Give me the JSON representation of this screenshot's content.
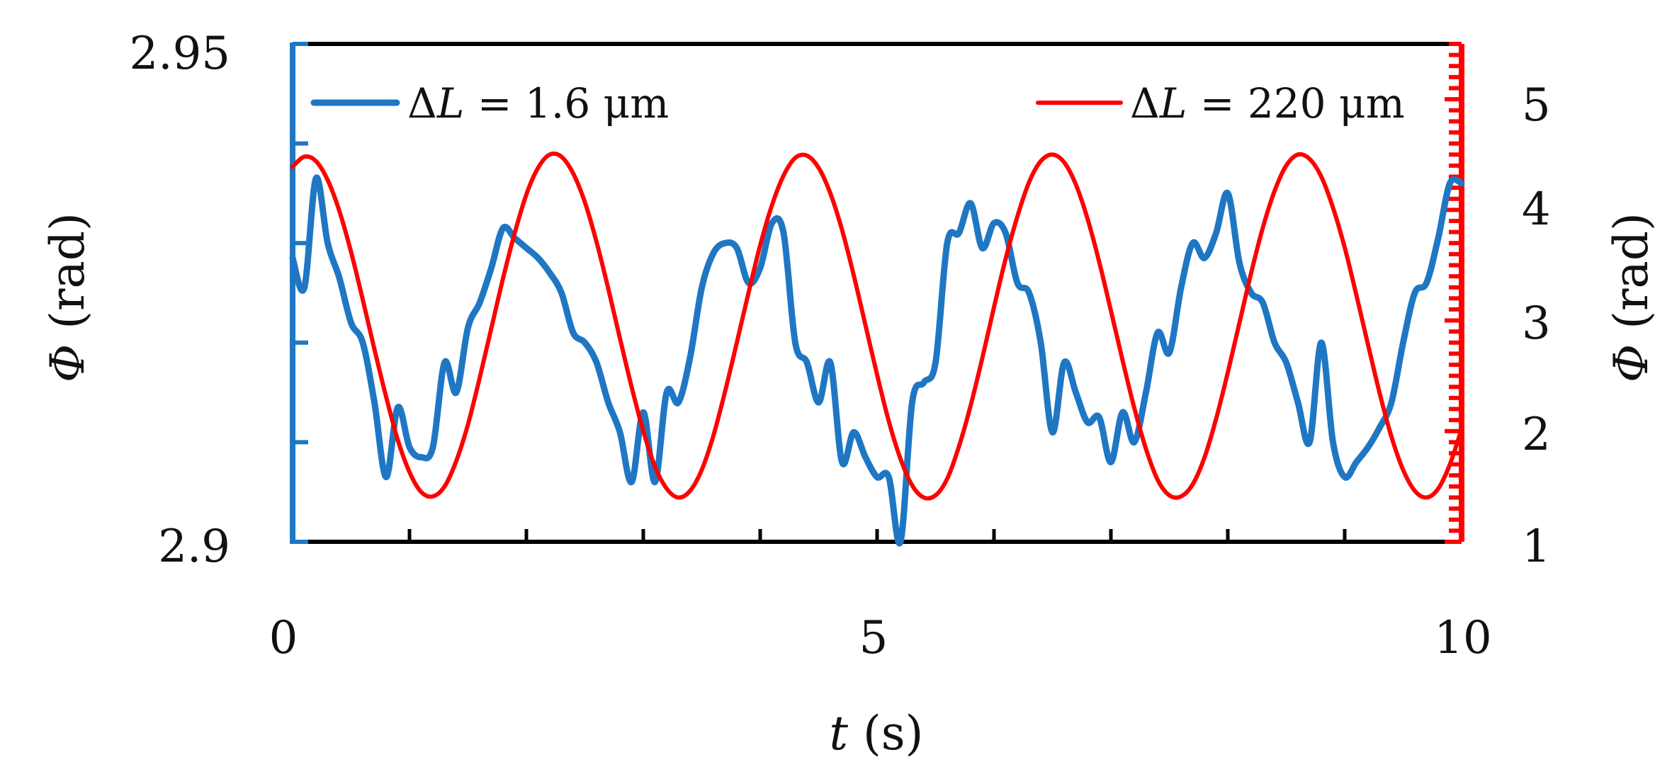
{
  "chart_data": {
    "type": "line",
    "xlabel": {
      "var": "t",
      "unit": " (s)"
    },
    "ylabel_left": {
      "var": "Φ",
      "unit": " (rad)"
    },
    "ylabel_right": {
      "var": "Φ",
      "unit": " (rad)"
    },
    "x_ticks": [
      "0",
      "5",
      "10"
    ],
    "y_left_ticks": [
      "2.95",
      "2.9"
    ],
    "y_right_ticks": [
      "5",
      "4",
      "3",
      "2",
      "1"
    ],
    "xlim": [
      0,
      10
    ],
    "ylim_left": [
      2.9,
      2.95
    ],
    "ylim_right": [
      1,
      5.5
    ],
    "grid": false,
    "legend_position": "top",
    "colors": {
      "series1": "#1f77c4",
      "series2": "#ff0000"
    },
    "series": [
      {
        "name": "ΔL = 1.6 μm",
        "label": {
          "prefix": "Δ",
          "var": "L",
          "rest": " = 1.6 μm"
        },
        "axis": "left",
        "color": "#1f77c4",
        "x": [
          0.0,
          0.1,
          0.2,
          0.3,
          0.4,
          0.5,
          0.6,
          0.7,
          0.8,
          0.9,
          1.0,
          1.1,
          1.2,
          1.3,
          1.4,
          1.5,
          1.6,
          1.7,
          1.8,
          1.9,
          2.0,
          2.1,
          2.2,
          2.3,
          2.4,
          2.5,
          2.6,
          2.7,
          2.8,
          2.9,
          3.0,
          3.1,
          3.2,
          3.3,
          3.4,
          3.5,
          3.6,
          3.7,
          3.8,
          3.9,
          4.0,
          4.1,
          4.2,
          4.3,
          4.4,
          4.5,
          4.6,
          4.7,
          4.8,
          4.9,
          5.0,
          5.1,
          5.2,
          5.3,
          5.4,
          5.5,
          5.6,
          5.7,
          5.8,
          5.9,
          6.0,
          6.1,
          6.2,
          6.3,
          6.4,
          6.5,
          6.6,
          6.7,
          6.8,
          6.9,
          7.0,
          7.1,
          7.2,
          7.3,
          7.4,
          7.5,
          7.6,
          7.7,
          7.8,
          7.9,
          8.0,
          8.1,
          8.2,
          8.3,
          8.4,
          8.5,
          8.6,
          8.7,
          8.8,
          8.9,
          9.0,
          9.1,
          9.2,
          9.3,
          9.4,
          9.5,
          9.6,
          9.7,
          9.8,
          9.9,
          10.0
        ],
        "values": [
          2.9285,
          2.9255,
          2.9365,
          2.93,
          2.9265,
          2.922,
          2.92,
          2.914,
          2.9065,
          2.9135,
          2.9095,
          2.9085,
          2.9095,
          2.918,
          2.915,
          2.9215,
          2.924,
          2.9275,
          2.9315,
          2.9305,
          2.9295,
          2.9285,
          2.927,
          2.925,
          2.921,
          2.92,
          2.918,
          2.914,
          2.911,
          2.906,
          2.913,
          2.906,
          2.915,
          2.914,
          2.9185,
          2.9255,
          2.929,
          2.93,
          2.9295,
          2.926,
          2.9275,
          2.932,
          2.931,
          2.92,
          2.918,
          2.914,
          2.918,
          2.908,
          2.911,
          2.9085,
          2.9065,
          2.9065,
          2.9,
          2.914,
          2.916,
          2.918,
          2.93,
          2.931,
          2.934,
          2.9295,
          2.932,
          2.931,
          2.926,
          2.925,
          2.92,
          2.911,
          2.918,
          2.915,
          2.912,
          2.9125,
          2.908,
          2.913,
          2.91,
          2.915,
          2.921,
          2.919,
          2.9255,
          2.93,
          2.9285,
          2.931,
          2.935,
          2.928,
          2.925,
          2.924,
          2.92,
          2.918,
          2.914,
          2.91,
          2.92,
          2.91,
          2.9065,
          2.908,
          2.9095,
          2.9115,
          2.914,
          2.92,
          2.925,
          2.926,
          2.9305,
          2.936,
          2.936
        ]
      },
      {
        "name": "ΔL = 220 μm",
        "label": {
          "prefix": "Δ",
          "var": "L",
          "rest": " = 220 μm"
        },
        "axis": "right",
        "color": "#ff0000",
        "function": "2.95 + 1.55*sin(2*pi*(t - 0.53)/2.09)",
        "x": [
          0.0,
          0.1,
          0.2,
          0.3,
          0.4,
          0.5,
          0.6,
          0.7,
          0.8,
          0.9,
          1.0,
          1.1,
          1.2,
          1.3,
          1.4,
          1.5,
          1.6,
          1.7,
          1.8,
          1.9,
          2.0,
          2.1,
          2.2,
          2.3,
          2.4,
          2.5,
          2.6,
          2.7,
          2.8,
          2.9,
          3.0,
          3.1,
          3.2,
          3.3,
          3.4,
          3.5,
          3.6,
          3.7,
          3.8,
          3.9,
          4.0,
          4.1,
          4.2,
          4.3,
          4.4,
          4.5,
          4.6,
          4.7,
          4.8,
          4.9,
          5.0,
          5.1,
          5.2,
          5.3,
          5.4,
          5.5,
          5.6,
          5.7,
          5.8,
          5.9,
          6.0,
          6.1,
          6.2,
          6.3,
          6.4,
          6.5,
          6.6,
          6.7,
          6.8,
          6.9,
          7.0,
          7.1,
          7.2,
          7.3,
          7.4,
          7.5,
          7.6,
          7.7,
          7.8,
          7.9,
          8.0,
          8.1,
          8.2,
          8.3,
          8.4,
          8.5,
          8.6,
          8.7,
          8.8,
          8.9,
          9.0,
          9.1,
          9.2,
          9.3,
          9.4,
          9.5,
          9.6,
          9.7,
          9.8,
          9.9,
          10.0
        ],
        "values": [
          4.39,
          4.48,
          4.44,
          4.27,
          3.99,
          3.62,
          3.19,
          2.74,
          2.31,
          1.92,
          1.63,
          1.45,
          1.41,
          1.5,
          1.73,
          2.06,
          2.48,
          2.93,
          3.38,
          3.79,
          4.14,
          4.38,
          4.5,
          4.48,
          4.33,
          4.07,
          3.71,
          3.29,
          2.84,
          2.4,
          2.0,
          1.68,
          1.48,
          1.4,
          1.46,
          1.65,
          1.96,
          2.36,
          2.8,
          3.25,
          3.68,
          4.04,
          4.31,
          4.47,
          4.49,
          4.38,
          4.15,
          3.82,
          3.41,
          2.96,
          2.51,
          2.09,
          1.75,
          1.51,
          1.4,
          1.42,
          1.57,
          1.86,
          2.23,
          2.66,
          3.12,
          3.56,
          3.94,
          4.25,
          4.44,
          4.5,
          4.43,
          4.23,
          3.92,
          3.53,
          3.09,
          2.64,
          2.21,
          1.84,
          1.56,
          1.42,
          1.41,
          1.52,
          1.76,
          2.11,
          2.53,
          2.98,
          3.43,
          3.84,
          4.17,
          4.4,
          4.5,
          4.46,
          4.3,
          4.02,
          3.66,
          3.23,
          2.78,
          2.34,
          1.95,
          1.65,
          1.46,
          1.4,
          1.48,
          1.7,
          2.02
        ]
      }
    ]
  }
}
